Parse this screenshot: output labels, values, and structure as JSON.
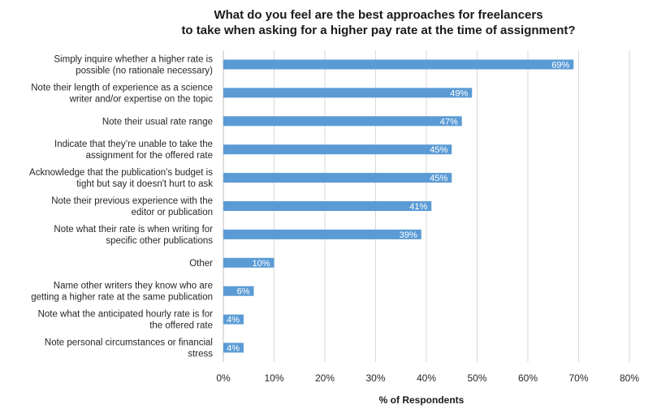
{
  "chart_data": {
    "type": "bar",
    "orientation": "horizontal",
    "title": [
      "What do you feel are the best approaches for freelancers",
      "to take when asking for a higher pay rate at the time of assignment?"
    ],
    "xlabel": "% of Respondents",
    "ylabel": "",
    "xlim": [
      0,
      80
    ],
    "x_ticks": [
      "0%",
      "10%",
      "20%",
      "30%",
      "40%",
      "50%",
      "60%",
      "70%",
      "80%"
    ],
    "grid": true,
    "bar_color": "#5b9bd5",
    "categories": [
      [
        "Simply inquire whether a higher rate is",
        "possible (no rationale necessary)"
      ],
      [
        "Note their length of experience as a science",
        "writer and/or expertise on the topic"
      ],
      [
        "Note their usual rate range"
      ],
      [
        "Indicate that they’re unable to take the",
        "assignment for the offered rate"
      ],
      [
        "Acknowledge that the publication's budget is",
        "tight but say it doesn't hurt to ask"
      ],
      [
        "Note their previous experience with the",
        "editor or publication"
      ],
      [
        "Note what their rate is when writing for",
        "specific other publications"
      ],
      [
        "Other"
      ],
      [
        "Name other writers they know who are",
        "getting a higher rate at the same publication"
      ],
      [
        "Note what the anticipated hourly rate is for",
        "the offered rate"
      ],
      [
        "Note personal circumstances or financial",
        "stress"
      ]
    ],
    "values": [
      69,
      49,
      47,
      45,
      45,
      41,
      39,
      10,
      6,
      4,
      4
    ],
    "data_labels": [
      "69%",
      "49%",
      "47%",
      "45%",
      "45%",
      "41%",
      "39%",
      "10%",
      "6%",
      "4%",
      "4%"
    ]
  }
}
